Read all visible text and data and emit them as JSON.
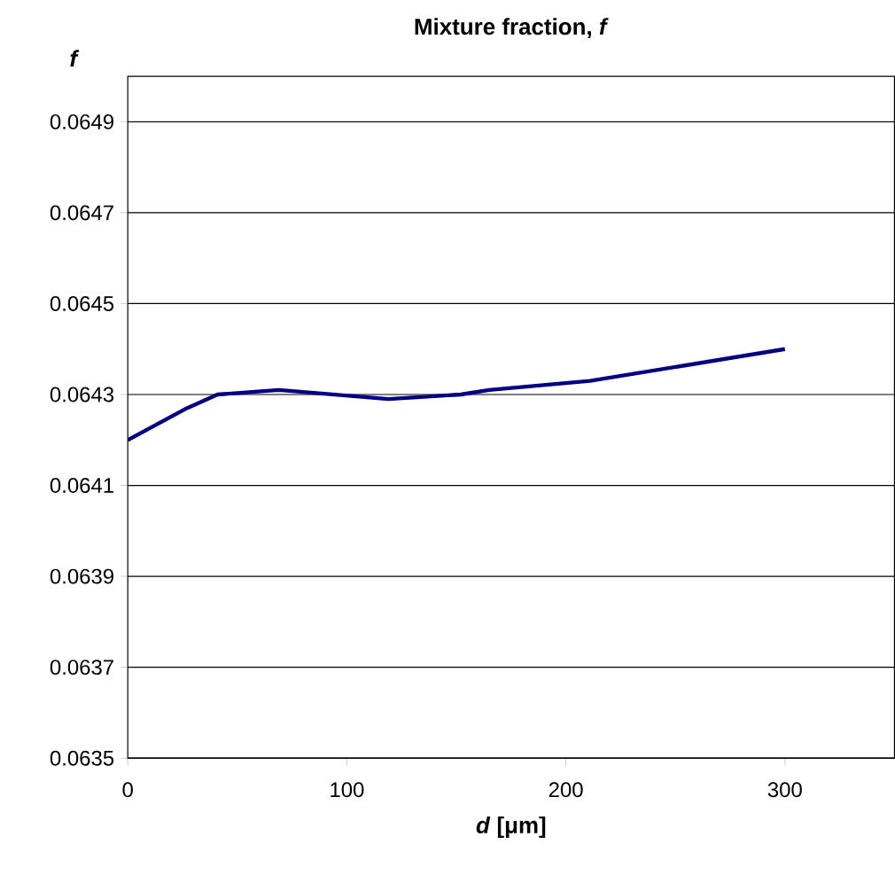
{
  "chart_data": {
    "type": "line",
    "title": "Mixture fraction, *f*",
    "xlabel": "*d* [μm]",
    "ylabel": "f",
    "xlim": [
      0,
      350
    ],
    "xticks": [
      0,
      100,
      200,
      300
    ],
    "ylim": [
      0.0635,
      0.065
    ],
    "yticks": [
      0.0635,
      0.0637,
      0.0639,
      0.0641,
      0.0643,
      0.0645,
      0.0647,
      0.0649
    ],
    "grid": "y",
    "marker": "none",
    "line_style": "solid",
    "series": [
      {
        "color": "#000080",
        "x": [
          0,
          27,
          41,
          69,
          119,
          152,
          165,
          211,
          300
        ],
        "values": [
          0.0642,
          0.06427,
          0.0643,
          0.06431,
          0.06429,
          0.0643,
          0.06431,
          0.06433,
          0.0644
        ]
      }
    ]
  }
}
